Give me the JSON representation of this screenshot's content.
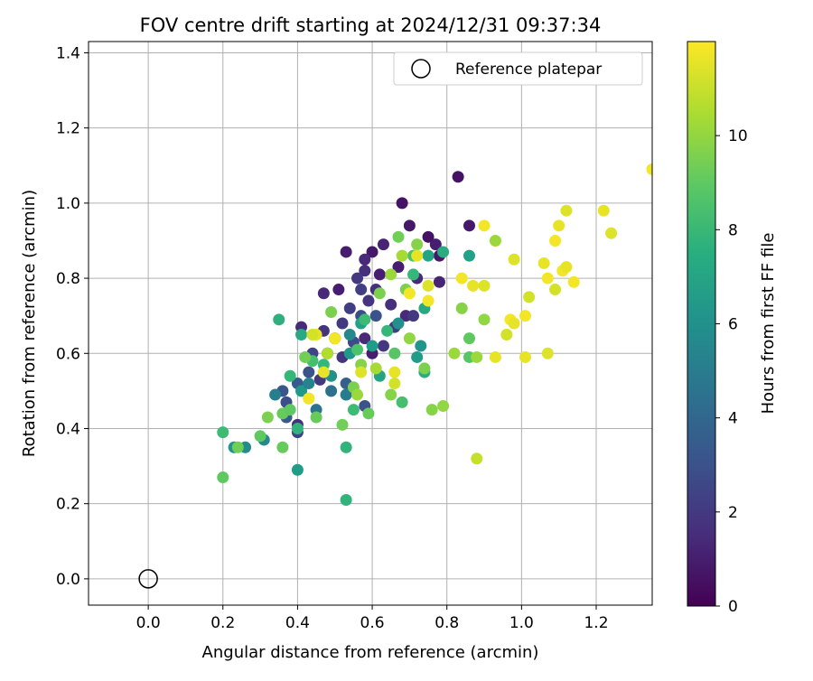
{
  "chart_data": {
    "type": "scatter",
    "title": "FOV centre drift starting at 2024/12/31 09:37:34",
    "xlabel": "Angular distance from reference (arcmin)",
    "ylabel": "Rotation from reference (arcmin)",
    "xlim": [
      -0.16,
      1.35
    ],
    "ylim": [
      -0.07,
      1.43
    ],
    "xticks": [
      "0.0",
      "0.2",
      "0.4",
      "0.6",
      "0.8",
      "1.0",
      "1.2"
    ],
    "xtick_values": [
      0.0,
      0.2,
      0.4,
      0.6,
      0.8,
      1.0,
      1.2
    ],
    "yticks": [
      "0.0",
      "0.2",
      "0.4",
      "0.6",
      "0.8",
      "1.0",
      "1.2",
      "1.4"
    ],
    "ytick_values": [
      0.0,
      0.2,
      0.4,
      0.6,
      0.8,
      1.0,
      1.2,
      1.4
    ],
    "grid": true,
    "legend": {
      "label": "Reference platepar",
      "position": "top-right"
    },
    "reference_point": {
      "x": 0.0,
      "y": 0.0
    },
    "colorbar": {
      "label": "Hours from first FF file",
      "colormap": "viridis",
      "range": [
        0,
        12
      ],
      "ticks": [
        "0",
        "2",
        "4",
        "6",
        "8",
        "10"
      ],
      "tick_values": [
        0,
        2,
        4,
        6,
        8,
        10
      ]
    },
    "points": [
      {
        "x": 0.83,
        "y": 1.07,
        "c": 0.6
      },
      {
        "x": 0.68,
        "y": 1.0,
        "c": 0.6
      },
      {
        "x": 0.86,
        "y": 0.94,
        "c": 0.8
      },
      {
        "x": 0.7,
        "y": 0.94,
        "c": 0.8
      },
      {
        "x": 0.75,
        "y": 0.91,
        "c": 0.6
      },
      {
        "x": 0.77,
        "y": 0.89,
        "c": 1.0
      },
      {
        "x": 0.63,
        "y": 0.89,
        "c": 1.2
      },
      {
        "x": 0.78,
        "y": 0.86,
        "c": 0.8
      },
      {
        "x": 0.6,
        "y": 0.87,
        "c": 0.8
      },
      {
        "x": 0.53,
        "y": 0.87,
        "c": 1.0
      },
      {
        "x": 0.58,
        "y": 0.85,
        "c": 1.4
      },
      {
        "x": 0.67,
        "y": 0.83,
        "c": 1.0
      },
      {
        "x": 0.58,
        "y": 0.82,
        "c": 1.6
      },
      {
        "x": 0.56,
        "y": 0.8,
        "c": 2.0
      },
      {
        "x": 0.62,
        "y": 0.81,
        "c": 1.0
      },
      {
        "x": 0.72,
        "y": 0.8,
        "c": 1.4
      },
      {
        "x": 0.78,
        "y": 0.79,
        "c": 1.2
      },
      {
        "x": 0.57,
        "y": 0.77,
        "c": 2.2
      },
      {
        "x": 0.61,
        "y": 0.77,
        "c": 1.6
      },
      {
        "x": 0.51,
        "y": 0.77,
        "c": 1.0
      },
      {
        "x": 0.47,
        "y": 0.76,
        "c": 1.4
      },
      {
        "x": 0.59,
        "y": 0.74,
        "c": 1.8
      },
      {
        "x": 0.65,
        "y": 0.73,
        "c": 1.6
      },
      {
        "x": 0.54,
        "y": 0.72,
        "c": 2.2
      },
      {
        "x": 0.57,
        "y": 0.7,
        "c": 2.8
      },
      {
        "x": 0.61,
        "y": 0.7,
        "c": 3.0
      },
      {
        "x": 0.69,
        "y": 0.7,
        "c": 1.4
      },
      {
        "x": 0.71,
        "y": 0.7,
        "c": 2.0
      },
      {
        "x": 0.52,
        "y": 0.68,
        "c": 2.0
      },
      {
        "x": 0.41,
        "y": 0.67,
        "c": 1.4
      },
      {
        "x": 0.66,
        "y": 0.67,
        "c": 2.2
      },
      {
        "x": 0.47,
        "y": 0.66,
        "c": 1.8
      },
      {
        "x": 0.5,
        "y": 0.64,
        "c": 1.6
      },
      {
        "x": 0.55,
        "y": 0.63,
        "c": 2.6
      },
      {
        "x": 0.58,
        "y": 0.64,
        "c": 1.4
      },
      {
        "x": 0.63,
        "y": 0.62,
        "c": 2.0
      },
      {
        "x": 0.44,
        "y": 0.6,
        "c": 2.4
      },
      {
        "x": 0.48,
        "y": 0.6,
        "c": 3.2
      },
      {
        "x": 0.52,
        "y": 0.59,
        "c": 1.8
      },
      {
        "x": 0.6,
        "y": 0.6,
        "c": 1.0
      },
      {
        "x": 0.43,
        "y": 0.55,
        "c": 3.0
      },
      {
        "x": 0.46,
        "y": 0.53,
        "c": 2.0
      },
      {
        "x": 0.4,
        "y": 0.52,
        "c": 3.4
      },
      {
        "x": 0.53,
        "y": 0.52,
        "c": 3.6
      },
      {
        "x": 0.36,
        "y": 0.5,
        "c": 3.2
      },
      {
        "x": 0.49,
        "y": 0.5,
        "c": 4.4
      },
      {
        "x": 0.37,
        "y": 0.47,
        "c": 2.8
      },
      {
        "x": 0.58,
        "y": 0.46,
        "c": 3.0
      },
      {
        "x": 0.37,
        "y": 0.43,
        "c": 3.4
      },
      {
        "x": 0.4,
        "y": 0.41,
        "c": 1.6
      },
      {
        "x": 0.4,
        "y": 0.39,
        "c": 2.4
      },
      {
        "x": 0.45,
        "y": 0.45,
        "c": 4.6
      },
      {
        "x": 0.53,
        "y": 0.49,
        "c": 5.0
      },
      {
        "x": 0.31,
        "y": 0.37,
        "c": 5.6
      },
      {
        "x": 0.26,
        "y": 0.35,
        "c": 5.8
      },
      {
        "x": 0.23,
        "y": 0.35,
        "c": 6.2
      },
      {
        "x": 0.4,
        "y": 0.29,
        "c": 6.6
      },
      {
        "x": 0.34,
        "y": 0.49,
        "c": 5.2
      },
      {
        "x": 0.41,
        "y": 0.5,
        "c": 6.4
      },
      {
        "x": 0.43,
        "y": 0.52,
        "c": 5.4
      },
      {
        "x": 0.49,
        "y": 0.54,
        "c": 6.0
      },
      {
        "x": 0.54,
        "y": 0.6,
        "c": 6.4
      },
      {
        "x": 0.54,
        "y": 0.65,
        "c": 5.6
      },
      {
        "x": 0.57,
        "y": 0.68,
        "c": 6.8
      },
      {
        "x": 0.6,
        "y": 0.62,
        "c": 6.6
      },
      {
        "x": 0.62,
        "y": 0.54,
        "c": 7.0
      },
      {
        "x": 0.67,
        "y": 0.68,
        "c": 6.0
      },
      {
        "x": 0.72,
        "y": 0.59,
        "c": 6.6
      },
      {
        "x": 0.73,
        "y": 0.62,
        "c": 6.2
      },
      {
        "x": 0.74,
        "y": 0.72,
        "c": 7.2
      },
      {
        "x": 0.75,
        "y": 0.86,
        "c": 7.0
      },
      {
        "x": 0.79,
        "y": 0.87,
        "c": 7.4
      },
      {
        "x": 0.86,
        "y": 0.86,
        "c": 6.8
      },
      {
        "x": 0.74,
        "y": 0.55,
        "c": 7.4
      },
      {
        "x": 0.41,
        "y": 0.65,
        "c": 7.2
      },
      {
        "x": 0.35,
        "y": 0.69,
        "c": 7.6
      },
      {
        "x": 0.53,
        "y": 0.21,
        "c": 7.8
      },
      {
        "x": 0.2,
        "y": 0.39,
        "c": 8.2
      },
      {
        "x": 0.38,
        "y": 0.54,
        "c": 8.0
      },
      {
        "x": 0.4,
        "y": 0.4,
        "c": 7.8
      },
      {
        "x": 0.44,
        "y": 0.58,
        "c": 8.4
      },
      {
        "x": 0.47,
        "y": 0.57,
        "c": 8.0
      },
      {
        "x": 0.55,
        "y": 0.45,
        "c": 8.2
      },
      {
        "x": 0.53,
        "y": 0.35,
        "c": 7.8
      },
      {
        "x": 0.56,
        "y": 0.61,
        "c": 8.6
      },
      {
        "x": 0.58,
        "y": 0.69,
        "c": 8.2
      },
      {
        "x": 0.64,
        "y": 0.66,
        "c": 8.0
      },
      {
        "x": 0.68,
        "y": 0.47,
        "c": 8.4
      },
      {
        "x": 0.66,
        "y": 0.6,
        "c": 8.8
      },
      {
        "x": 0.71,
        "y": 0.86,
        "c": 8.6
      },
      {
        "x": 0.71,
        "y": 0.81,
        "c": 8.0
      },
      {
        "x": 0.86,
        "y": 0.64,
        "c": 9.0
      },
      {
        "x": 0.86,
        "y": 0.59,
        "c": 8.8
      },
      {
        "x": 0.36,
        "y": 0.35,
        "c": 9.2
      },
      {
        "x": 0.2,
        "y": 0.27,
        "c": 9.0
      },
      {
        "x": 0.24,
        "y": 0.35,
        "c": 9.4
      },
      {
        "x": 0.3,
        "y": 0.38,
        "c": 9.0
      },
      {
        "x": 0.32,
        "y": 0.43,
        "c": 9.6
      },
      {
        "x": 0.36,
        "y": 0.44,
        "c": 9.2
      },
      {
        "x": 0.38,
        "y": 0.45,
        "c": 9.0
      },
      {
        "x": 0.42,
        "y": 0.59,
        "c": 9.4
      },
      {
        "x": 0.45,
        "y": 0.43,
        "c": 9.2
      },
      {
        "x": 0.49,
        "y": 0.71,
        "c": 9.6
      },
      {
        "x": 0.52,
        "y": 0.41,
        "c": 9.4
      },
      {
        "x": 0.55,
        "y": 0.51,
        "c": 9.6
      },
      {
        "x": 0.57,
        "y": 0.57,
        "c": 9.8
      },
      {
        "x": 0.59,
        "y": 0.44,
        "c": 9.2
      },
      {
        "x": 0.62,
        "y": 0.76,
        "c": 9.6
      },
      {
        "x": 0.65,
        "y": 0.49,
        "c": 9.8
      },
      {
        "x": 0.67,
        "y": 0.91,
        "c": 9.4
      },
      {
        "x": 0.69,
        "y": 0.77,
        "c": 9.6
      },
      {
        "x": 0.72,
        "y": 0.89,
        "c": 9.8
      },
      {
        "x": 0.74,
        "y": 0.56,
        "c": 9.6
      },
      {
        "x": 0.76,
        "y": 0.45,
        "c": 9.8
      },
      {
        "x": 0.79,
        "y": 0.46,
        "c": 10.0
      },
      {
        "x": 0.82,
        "y": 0.6,
        "c": 10.2
      },
      {
        "x": 0.84,
        "y": 0.72,
        "c": 9.8
      },
      {
        "x": 0.88,
        "y": 0.59,
        "c": 10.2
      },
      {
        "x": 0.9,
        "y": 0.69,
        "c": 10.0
      },
      {
        "x": 0.93,
        "y": 0.9,
        "c": 10.2
      },
      {
        "x": 0.7,
        "y": 0.64,
        "c": 10.0
      },
      {
        "x": 0.61,
        "y": 0.56,
        "c": 10.4
      },
      {
        "x": 0.65,
        "y": 0.81,
        "c": 10.2
      },
      {
        "x": 0.68,
        "y": 0.86,
        "c": 10.4
      },
      {
        "x": 0.56,
        "y": 0.49,
        "c": 10.2
      },
      {
        "x": 0.48,
        "y": 0.6,
        "c": 10.6
      },
      {
        "x": 0.43,
        "y": 0.48,
        "c": 10.6
      },
      {
        "x": 0.43,
        "y": 0.48,
        "c": 11.8
      },
      {
        "x": 0.47,
        "y": 0.55,
        "c": 11.6
      },
      {
        "x": 0.5,
        "y": 0.64,
        "c": 11.8
      },
      {
        "x": 0.45,
        "y": 0.65,
        "c": 11.6
      },
      {
        "x": 0.57,
        "y": 0.55,
        "c": 11.4
      },
      {
        "x": 0.66,
        "y": 0.55,
        "c": 11.6
      },
      {
        "x": 0.66,
        "y": 0.52,
        "c": 11.2
      },
      {
        "x": 0.7,
        "y": 0.76,
        "c": 11.8
      },
      {
        "x": 0.72,
        "y": 0.86,
        "c": 11.6
      },
      {
        "x": 0.75,
        "y": 0.74,
        "c": 11.8
      },
      {
        "x": 0.75,
        "y": 0.78,
        "c": 11.4
      },
      {
        "x": 0.84,
        "y": 0.8,
        "c": 11.8
      },
      {
        "x": 0.87,
        "y": 0.78,
        "c": 11.6
      },
      {
        "x": 0.88,
        "y": 0.32,
        "c": 11.0
      },
      {
        "x": 0.9,
        "y": 0.94,
        "c": 11.8
      },
      {
        "x": 0.9,
        "y": 0.78,
        "c": 11.4
      },
      {
        "x": 0.93,
        "y": 0.59,
        "c": 11.6
      },
      {
        "x": 0.96,
        "y": 0.65,
        "c": 11.2
      },
      {
        "x": 0.97,
        "y": 0.69,
        "c": 11.8
      },
      {
        "x": 0.98,
        "y": 0.68,
        "c": 11.6
      },
      {
        "x": 0.98,
        "y": 0.85,
        "c": 11.4
      },
      {
        "x": 1.01,
        "y": 0.7,
        "c": 11.8
      },
      {
        "x": 1.01,
        "y": 0.59,
        "c": 11.6
      },
      {
        "x": 1.02,
        "y": 0.75,
        "c": 11.2
      },
      {
        "x": 1.06,
        "y": 0.84,
        "c": 11.6
      },
      {
        "x": 1.07,
        "y": 0.8,
        "c": 11.8
      },
      {
        "x": 1.07,
        "y": 0.6,
        "c": 11.4
      },
      {
        "x": 1.09,
        "y": 0.9,
        "c": 11.8
      },
      {
        "x": 1.1,
        "y": 0.94,
        "c": 11.6
      },
      {
        "x": 1.09,
        "y": 0.77,
        "c": 11.2
      },
      {
        "x": 1.11,
        "y": 0.82,
        "c": 11.8
      },
      {
        "x": 1.12,
        "y": 0.83,
        "c": 11.6
      },
      {
        "x": 1.12,
        "y": 0.98,
        "c": 11.4
      },
      {
        "x": 1.14,
        "y": 0.79,
        "c": 11.8
      },
      {
        "x": 1.22,
        "y": 0.98,
        "c": 11.6
      },
      {
        "x": 1.24,
        "y": 0.92,
        "c": 11.4
      },
      {
        "x": 1.35,
        "y": 1.09,
        "c": 11.8
      },
      {
        "x": 0.44,
        "y": 0.65,
        "c": 11.2
      }
    ]
  }
}
